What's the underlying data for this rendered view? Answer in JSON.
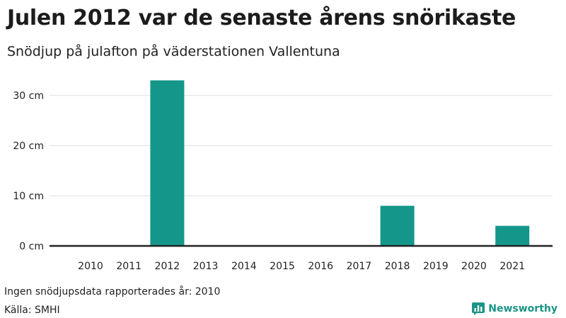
{
  "title": "Julen 2012 var de senaste årens snörikaste",
  "subtitle": "Snödjup på julafton på väderstationen Vallentuna",
  "footnote": "Ingen snödjupsdata rapporterades år: 2010",
  "source": "Källa: SMHI",
  "brand": {
    "name": "Newsworthy",
    "icon": "newsworthy-logo-icon",
    "color": "#1a9585"
  },
  "chart_data": {
    "type": "bar",
    "title": "Julen 2012 var de senaste årens snörikaste",
    "subtitle": "Snödjup på julafton på väderstationen Vallentuna",
    "categories": [
      "2010",
      "2011",
      "2012",
      "2013",
      "2014",
      "2015",
      "2016",
      "2017",
      "2018",
      "2019",
      "2020",
      "2021"
    ],
    "values": [
      null,
      0,
      33,
      0,
      0,
      0,
      0,
      0,
      8,
      0,
      0,
      4
    ],
    "ylim": [
      0,
      35
    ],
    "yticks": [
      0,
      10,
      20,
      30
    ],
    "ytick_labels": [
      "0 cm",
      "10 cm",
      "20 cm",
      "30 cm"
    ],
    "grid": true,
    "bar_color": "#14978a"
  }
}
